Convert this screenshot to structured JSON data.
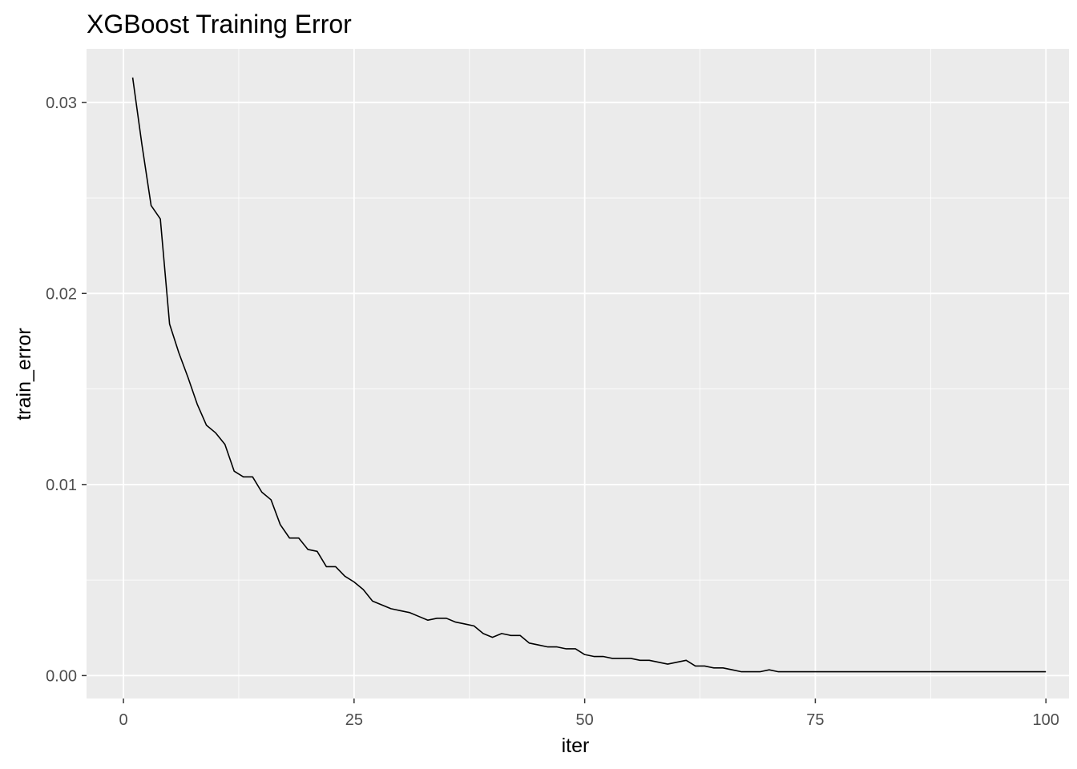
{
  "chart_data": {
    "type": "line",
    "title": "XGBoost Training Error",
    "xlabel": "iter",
    "ylabel": "train_error",
    "xlim": [
      -4,
      102.5
    ],
    "ylim": [
      -0.0012,
      0.0328
    ],
    "x_ticks": [
      0,
      25,
      50,
      75,
      100
    ],
    "x_tick_labels": [
      "0",
      "25",
      "50",
      "75",
      "100"
    ],
    "y_ticks": [
      0.0,
      0.01,
      0.02,
      0.03
    ],
    "y_tick_labels": [
      "0.00",
      "0.01",
      "0.02",
      "0.03"
    ],
    "grid": true,
    "panel_background": "#ebebeb",
    "gridline_color": "#ffffff",
    "line_color": "#000000",
    "series": [
      {
        "x": [
          1,
          2,
          3,
          4,
          5,
          6,
          7,
          8,
          9,
          10,
          11,
          12,
          13,
          14,
          15,
          16,
          17,
          18,
          19,
          20,
          21,
          22,
          23,
          24,
          25,
          26,
          27,
          28,
          29,
          30,
          31,
          32,
          33,
          34,
          35,
          36,
          37,
          38,
          39,
          40,
          41,
          42,
          43,
          44,
          45,
          46,
          47,
          48,
          49,
          50,
          51,
          52,
          53,
          54,
          55,
          56,
          57,
          58,
          59,
          60,
          61,
          62,
          63,
          64,
          65,
          66,
          67,
          68,
          69,
          70,
          71,
          72,
          73,
          74,
          75,
          76,
          77,
          78,
          79,
          80,
          81,
          82,
          83,
          84,
          85,
          86,
          87,
          88,
          89,
          90,
          91,
          92,
          93,
          94,
          95,
          96,
          97,
          98,
          99,
          100
        ],
        "y": [
          0.0313,
          0.0278,
          0.0246,
          0.0239,
          0.0184,
          0.0169,
          0.0156,
          0.0142,
          0.0131,
          0.0127,
          0.0121,
          0.0107,
          0.0104,
          0.0104,
          0.0096,
          0.0092,
          0.0079,
          0.0072,
          0.0072,
          0.0066,
          0.0065,
          0.0057,
          0.0057,
          0.0052,
          0.0049,
          0.0045,
          0.0039,
          0.0037,
          0.0035,
          0.0034,
          0.0033,
          0.0031,
          0.0029,
          0.003,
          0.003,
          0.0028,
          0.0027,
          0.0026,
          0.0022,
          0.002,
          0.0022,
          0.0021,
          0.0021,
          0.0017,
          0.0016,
          0.0015,
          0.0015,
          0.0014,
          0.0014,
          0.0011,
          0.001,
          0.001,
          0.0009,
          0.0009,
          0.0009,
          0.0008,
          0.0008,
          0.0007,
          0.0006,
          0.0007,
          0.0008,
          0.0005,
          0.0005,
          0.0004,
          0.0004,
          0.0003,
          0.0002,
          0.0002,
          0.0002,
          0.0003,
          0.0002,
          0.0002,
          0.0002,
          0.0002,
          0.0002,
          0.0002,
          0.0002,
          0.0002,
          0.0002,
          0.0002,
          0.0002,
          0.0002,
          0.0002,
          0.0002,
          0.0002,
          0.0002,
          0.0002,
          0.0002,
          0.0002,
          0.0002,
          0.0002,
          0.0002,
          0.0002,
          0.0002,
          0.0002,
          0.0002,
          0.0002,
          0.0002,
          0.0002,
          0.0002
        ]
      }
    ]
  }
}
